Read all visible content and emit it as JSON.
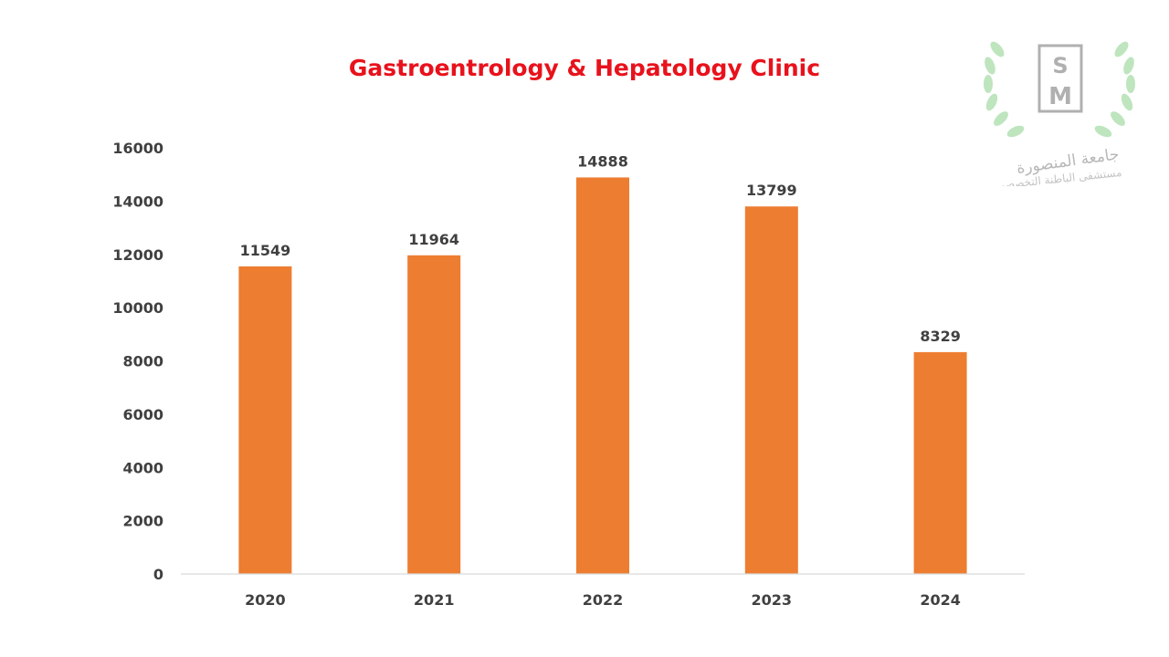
{
  "chart_data": {
    "type": "bar",
    "title": "Gastroentrology & Hepatology Clinic",
    "categories": [
      "2020",
      "2021",
      "2022",
      "2023",
      "2024"
    ],
    "values": [
      11549,
      11964,
      14888,
      13799,
      8329
    ],
    "ylim": [
      0,
      16000
    ],
    "yticks": [
      0,
      2000,
      4000,
      6000,
      8000,
      10000,
      12000,
      14000,
      16000
    ],
    "xlabel": "",
    "ylabel": "",
    "grid": false,
    "legend": "none",
    "bar_color": "#ed7d31",
    "data_labels": true
  },
  "colors": {
    "title": "#e8121c",
    "bar": "#ed7d31",
    "axis_text": "#404040",
    "axis_line": "#d9d9d9"
  },
  "logo": {
    "icon": "mansoura-hospital-logo-icon",
    "letters": "HSM",
    "arabic_line1": "جامعة المنصورة",
    "arabic_line2": "مستشفى الباطنة التخصصى"
  }
}
